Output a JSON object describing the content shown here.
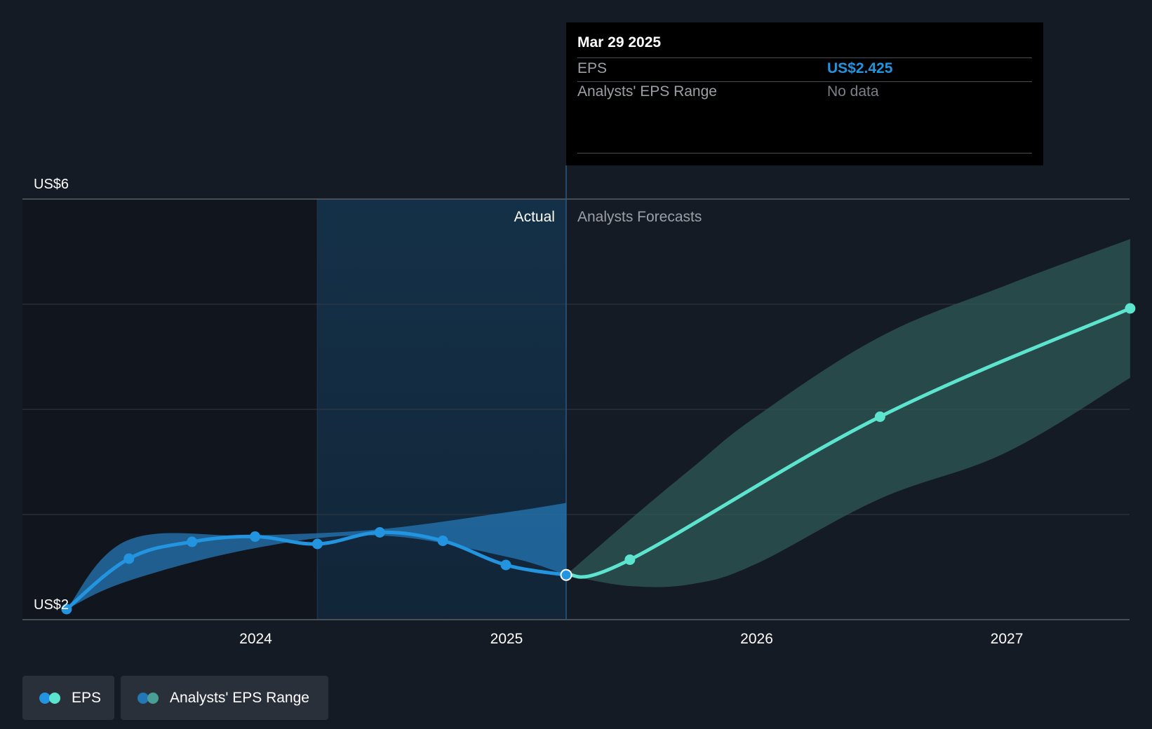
{
  "chart_data": {
    "type": "line",
    "title": "",
    "xlabel": "",
    "ylabel": "",
    "y_axis": {
      "min": 2,
      "max": 6,
      "ticks": [
        2,
        3,
        4,
        5,
        6
      ],
      "labeled_ticks": [
        {
          "value": 6,
          "label": "US$6"
        },
        {
          "value": 2,
          "label": "US$2"
        }
      ]
    },
    "x_axis": {
      "domain": [
        "2023-03-01",
        "2027-06-30"
      ],
      "ticks": [
        {
          "date": "2024-01-01",
          "label": "2024"
        },
        {
          "date": "2025-01-01",
          "label": "2025"
        },
        {
          "date": "2026-01-01",
          "label": "2026"
        },
        {
          "date": "2027-01-01",
          "label": "2027"
        }
      ]
    },
    "divider_date": "2025-03-29",
    "highlight_start": "2024-03-31",
    "section_labels": {
      "actual": "Actual",
      "forecast": "Analysts Forecasts"
    },
    "series": [
      {
        "name": "EPS",
        "color": "#2394df",
        "points": [
          {
            "date": "2023-03-31",
            "value": 2.1
          },
          {
            "date": "2023-06-30",
            "value": 2.58
          },
          {
            "date": "2023-09-30",
            "value": 2.74
          },
          {
            "date": "2023-12-31",
            "value": 2.79
          },
          {
            "date": "2024-03-31",
            "value": 2.72
          },
          {
            "date": "2024-06-30",
            "value": 2.83
          },
          {
            "date": "2024-09-30",
            "value": 2.75
          },
          {
            "date": "2024-12-31",
            "value": 2.52
          },
          {
            "date": "2025-03-29",
            "value": 2.425
          }
        ]
      },
      {
        "name": "EPS Forecast",
        "color": "#5de4cf",
        "points": [
          {
            "date": "2025-03-29",
            "value": 2.425
          },
          {
            "date": "2025-06-30",
            "value": 2.57
          },
          {
            "date": "2026-06-30",
            "value": 3.93
          },
          {
            "date": "2027-06-30",
            "value": 4.96
          }
        ]
      }
    ],
    "range_past": {
      "color": "#2477b5",
      "upper": [
        {
          "date": "2023-03-31",
          "value": 2.1
        },
        {
          "date": "2023-06-30",
          "value": 2.76
        },
        {
          "date": "2023-12-31",
          "value": 2.8
        },
        {
          "date": "2024-06-30",
          "value": 2.86
        },
        {
          "date": "2024-12-31",
          "value": 3.02
        },
        {
          "date": "2025-03-29",
          "value": 3.11
        }
      ],
      "lower": [
        {
          "date": "2023-03-31",
          "value": 2.1
        },
        {
          "date": "2023-06-30",
          "value": 2.37
        },
        {
          "date": "2023-12-31",
          "value": 2.68
        },
        {
          "date": "2024-06-30",
          "value": 2.8
        },
        {
          "date": "2024-12-31",
          "value": 2.6
        },
        {
          "date": "2025-03-29",
          "value": 2.425
        }
      ]
    },
    "range_forecast": {
      "color": "#2d5a57",
      "upper": [
        {
          "date": "2025-03-29",
          "value": 2.425
        },
        {
          "date": "2025-06-30",
          "value": 2.95
        },
        {
          "date": "2025-09-30",
          "value": 3.45
        },
        {
          "date": "2025-12-31",
          "value": 3.93
        },
        {
          "date": "2026-06-30",
          "value": 4.69
        },
        {
          "date": "2026-12-31",
          "value": 5.18
        },
        {
          "date": "2027-06-30",
          "value": 5.62
        }
      ],
      "lower": [
        {
          "date": "2025-03-29",
          "value": 2.425
        },
        {
          "date": "2025-06-30",
          "value": 2.32
        },
        {
          "date": "2025-09-30",
          "value": 2.34
        },
        {
          "date": "2025-12-31",
          "value": 2.53
        },
        {
          "date": "2026-06-30",
          "value": 3.15
        },
        {
          "date": "2026-12-31",
          "value": 3.59
        },
        {
          "date": "2027-06-30",
          "value": 4.3
        }
      ]
    }
  },
  "tooltip": {
    "date": "Mar 29 2025",
    "rows": [
      {
        "label": "EPS",
        "value": "US$2.425",
        "value_color": "#2394df"
      },
      {
        "label": "Analysts' EPS Range",
        "value": "No data",
        "value_color": "#7c8088"
      }
    ]
  },
  "legend": [
    {
      "label": "EPS",
      "colors": [
        "#2394df",
        "#5de4cf"
      ]
    },
    {
      "label": "Analysts' EPS Range",
      "colors": [
        "#2477b5",
        "#4a9e96"
      ]
    }
  ]
}
